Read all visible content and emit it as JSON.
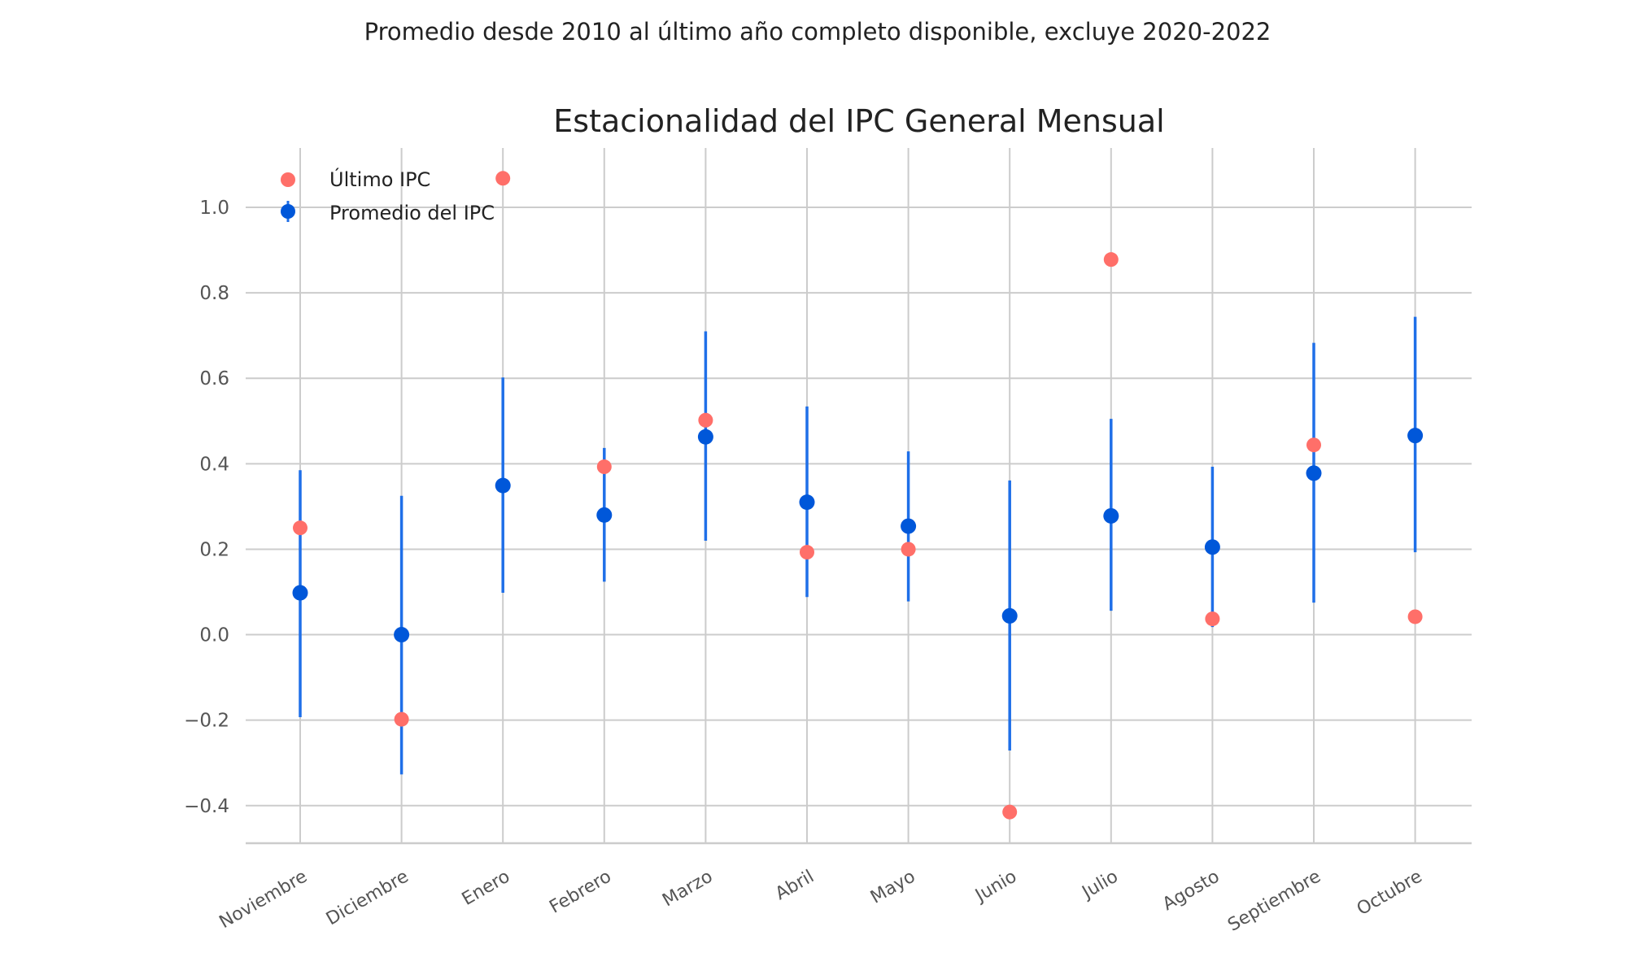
{
  "chart_data": {
    "type": "scatter",
    "suptitle": "Promedio desde 2010 al último año completo disponible, excluye 2020-2022",
    "title": "Estacionalidad del IPC General Mensual",
    "xlabel": "",
    "ylabel": "",
    "ylim": [
      -0.488,
      1.139
    ],
    "yticks": [
      -0.4,
      -0.2,
      0.0,
      0.2,
      0.4,
      0.6,
      0.8,
      1.0
    ],
    "ytick_labels": [
      "−0.4",
      "−0.2",
      "0.0",
      "0.2",
      "0.4",
      "0.6",
      "0.8",
      "1.0"
    ],
    "grid": true,
    "legend_position": "top-left",
    "categories": [
      "Noviembre",
      "Diciembre",
      "Enero",
      "Febrero",
      "Marzo",
      "Abril",
      "Mayo",
      "Junio",
      "Julio",
      "Agosto",
      "Septiembre",
      "Octubre"
    ],
    "series": [
      {
        "name": "Último IPC",
        "color": "#ff6f69",
        "values": [
          0.25,
          -0.198,
          1.068,
          0.393,
          0.502,
          0.193,
          0.2,
          -0.415,
          0.878,
          0.037,
          0.444,
          0.042
        ]
      },
      {
        "name": "Promedio del IPC",
        "color": "#0057d9",
        "errorbar_color": "#1f6fe8",
        "values": [
          0.098,
          0.0,
          0.349,
          0.28,
          0.463,
          0.31,
          0.254,
          0.044,
          0.278,
          0.205,
          0.378,
          0.466
        ],
        "lower": [
          -0.193,
          -0.327,
          0.098,
          0.124,
          0.22,
          0.088,
          0.078,
          -0.271,
          0.056,
          0.018,
          0.075,
          0.193
        ],
        "upper": [
          0.385,
          0.325,
          0.602,
          0.437,
          0.71,
          0.534,
          0.429,
          0.361,
          0.505,
          0.393,
          0.683,
          0.744
        ]
      }
    ]
  }
}
